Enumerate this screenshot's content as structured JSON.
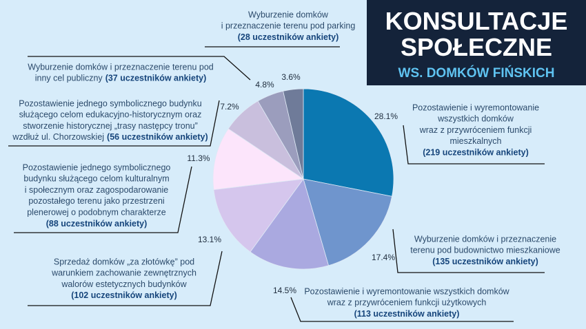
{
  "chart_data": {
    "type": "pie",
    "title": "KONSULTACJE SPOŁECZNE",
    "subtitle": "WS. DOMKÓW FIŃSKICH",
    "values": [
      28.1,
      17.4,
      14.5,
      13.1,
      11.3,
      7.2,
      4.8,
      3.6
    ],
    "value_labels": [
      "28.1%",
      "17.4%",
      "14.5%",
      "13.1%",
      "11.3%",
      "7.2%",
      "4.8%",
      "3.6%"
    ],
    "colors": [
      "#0b78b1",
      "#6f95cd",
      "#aaa9e0",
      "#d5c6ed",
      "#fce5fb",
      "#c9bfdd",
      "#9b9dbd",
      "#6f7b99"
    ],
    "labels": [
      {
        "lines": [
          "Pozostawienie i wyremontowanie",
          "wszystkich domków",
          "wraz z przywróceniem funkcji",
          "mieszkalnych"
        ],
        "count": "(219 uczestników ankiety)"
      },
      {
        "lines": [
          "Wyburzenie domków i przeznaczenie",
          "terenu pod budownictwo mieszkaniowe"
        ],
        "count": "(135 uczestników ankiety)"
      },
      {
        "lines": [
          "Pozostawienie i wyremontowanie wszystkich domków",
          "wraz z przywróceniem funkcji użytkowych"
        ],
        "count": "(113 uczestników ankiety)"
      },
      {
        "lines": [
          "Sprzedaż domków „za złotówkę” pod",
          "warunkiem zachowanie zewnętrznych",
          "walorów estetycznych budynków"
        ],
        "count": "(102 uczestników ankiety)"
      },
      {
        "lines": [
          "Pozostawienie jednego symbolicznego",
          "budynku służącego celom kulturalnym",
          "i społecznym oraz zagospodarowanie",
          "pozostałego terenu jako przestrzeni",
          "plenerowej o podobnym charakterze"
        ],
        "count": "(88 uczestników ankiety)"
      },
      {
        "lines": [
          "Pozostawienie jednego symbolicznego budynku",
          "służącego celom edukacyjno-historycznym oraz",
          "stworzenie historycznej „trasy następcy tronu”",
          "wzdłuż ul. Chorzowskiej"
        ],
        "count": "(56 uczestników ankiety)"
      },
      {
        "lines": [
          "Wyburzenie domków i przeznaczenie terenu pod",
          "inny cel publiczny"
        ],
        "count": "(37 uczestników ankiety)"
      },
      {
        "lines": [
          "Wyburzenie domków",
          "i przeznaczenie terenu pod parking"
        ],
        "count": "(28 uczestników ankiety)"
      }
    ]
  }
}
